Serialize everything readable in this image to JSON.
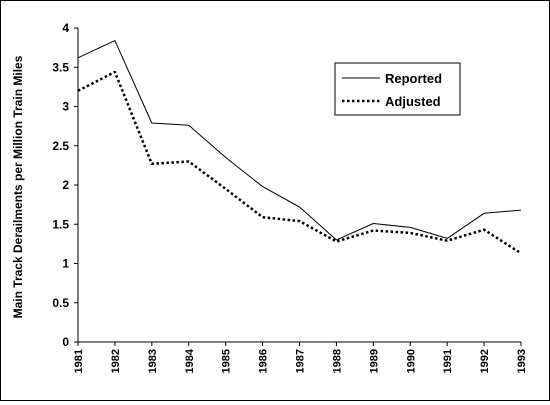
{
  "chart_data": {
    "type": "line",
    "title": "",
    "xlabel": "",
    "ylabel": "Main Track Derailments per Million Train Miles",
    "x": [
      "1981",
      "1982",
      "1983",
      "1984",
      "1985",
      "1986",
      "1987",
      "1988",
      "1989",
      "1990",
      "1991",
      "1992",
      "1993"
    ],
    "ylim": [
      0,
      4
    ],
    "y_ticks": [
      "0",
      "0.5",
      "1",
      "1.5",
      "2",
      "2.5",
      "3",
      "3.5",
      "4"
    ],
    "grid": false,
    "legend_position": "top-right",
    "series": [
      {
        "name": "Reported",
        "style": "solid",
        "color": "#000000",
        "values": [
          3.62,
          3.84,
          2.79,
          2.76,
          2.35,
          1.98,
          1.72,
          1.3,
          1.51,
          1.46,
          1.32,
          1.64,
          1.68
        ]
      },
      {
        "name": "Adjusted",
        "style": "dotted",
        "color": "#000000",
        "values": [
          3.2,
          3.44,
          2.27,
          2.3,
          1.95,
          1.59,
          1.54,
          1.28,
          1.42,
          1.39,
          1.29,
          1.43,
          1.13
        ]
      }
    ]
  }
}
